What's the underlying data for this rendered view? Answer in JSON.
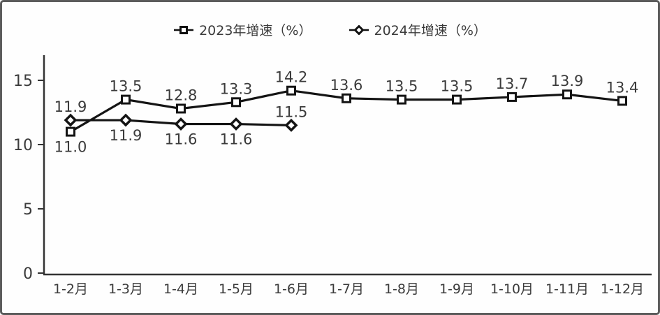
{
  "chart_data": {
    "type": "line",
    "title": "",
    "xlabel": "",
    "ylabel": "",
    "categories": [
      "1-2月",
      "1-3月",
      "1-4月",
      "1-5月",
      "1-6月",
      "1-7月",
      "1-8月",
      "1-9月",
      "1-10月",
      "1-11月",
      "1-12月"
    ],
    "series": [
      {
        "name": "2023年增速（%）",
        "marker": "square",
        "values": [
          11.0,
          13.5,
          12.8,
          13.3,
          14.2,
          13.6,
          13.5,
          13.5,
          13.7,
          13.9,
          13.4
        ],
        "label_positions": [
          "below",
          "above",
          "above",
          "above",
          "above",
          "above",
          "above",
          "above",
          "above",
          "above",
          "above"
        ]
      },
      {
        "name": "2024年增速（%）",
        "marker": "diamond",
        "values": [
          11.9,
          11.9,
          11.6,
          11.6,
          11.5
        ],
        "label_positions": [
          "above",
          "below",
          "below",
          "below",
          "above"
        ]
      }
    ],
    "y_ticks": [
      0,
      5,
      10,
      15
    ],
    "ylim": [
      0,
      16.8
    ],
    "grid": false,
    "legend_position": "top-center",
    "line_color": "#141414",
    "axis_color": "#333333",
    "label_color": "#3b3b3b"
  }
}
